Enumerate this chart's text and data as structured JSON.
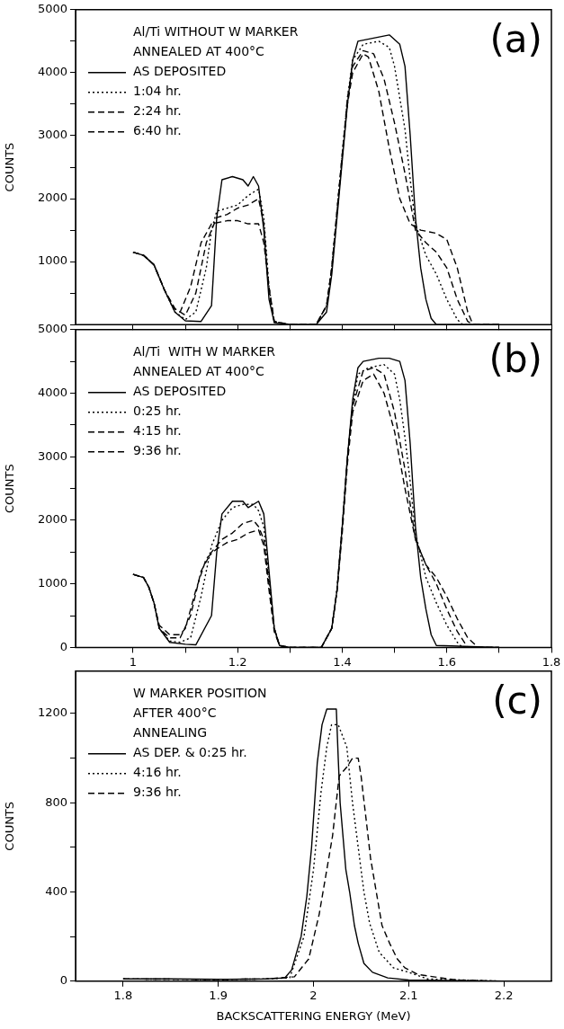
{
  "chart_data": [
    {
      "type": "line",
      "legend_title": "Al/Ti WITHOUT W MARKER\nANNEALED AT 400°C",
      "ylabel": "COUNTS",
      "annotations": [
        "(a)"
      ],
      "xlim": [
        0.89,
        1.8
      ],
      "xticks": [
        1.0,
        {
          "value": 1.1,
          "label": null
        },
        1.2,
        {
          "value": 1.3,
          "label": null
        },
        1.4,
        {
          "value": 1.5,
          "label": null
        },
        1.6,
        {
          "value": 1.7,
          "label": null
        },
        1.8
      ],
      "ylim": [
        0,
        5000
      ],
      "yticks": [
        {
          "value": 0,
          "label": null
        },
        {
          "value": 500,
          "label": null
        },
        1000,
        {
          "value": 1500,
          "label": null
        },
        2000,
        {
          "value": 2500,
          "label": null
        },
        3000,
        {
          "value": 3500,
          "label": null
        },
        4000,
        {
          "value": 4500,
          "label": null
        },
        5000
      ],
      "tick_labels": "y",
      "legend": "top left",
      "marker": "none",
      "series": [
        {
          "name": "AS DEPOSITED",
          "color": "#000000",
          "line_style": "solid",
          "x": [
            1.0,
            1.02,
            1.04,
            1.06,
            1.08,
            1.1,
            1.13,
            1.15,
            1.16,
            1.17,
            1.19,
            1.21,
            1.22,
            1.23,
            1.24,
            1.25,
            1.26,
            1.27,
            1.3,
            1.35,
            1.37,
            1.38,
            1.39,
            1.4,
            1.41,
            1.42,
            1.43,
            1.46,
            1.49,
            1.51,
            1.52,
            1.53,
            1.54,
            1.55,
            1.56,
            1.57,
            1.58,
            1.7
          ],
          "values": [
            1150,
            1100,
            950,
            550,
            200,
            60,
            50,
            300,
            1700,
            2300,
            2350,
            2300,
            2200,
            2350,
            2200,
            1500,
            400,
            30,
            0,
            0,
            200,
            800,
            1700,
            2600,
            3500,
            4200,
            4500,
            4550,
            4600,
            4450,
            4100,
            3000,
            1700,
            900,
            400,
            100,
            0,
            0
          ]
        },
        {
          "name": "1:04 hr.",
          "color": "#000000",
          "line_style": "dotted",
          "x": [
            1.0,
            1.02,
            1.04,
            1.06,
            1.08,
            1.1,
            1.12,
            1.14,
            1.15,
            1.16,
            1.18,
            1.2,
            1.22,
            1.24,
            1.25,
            1.26,
            1.27,
            1.3,
            1.35,
            1.37,
            1.38,
            1.39,
            1.4,
            1.41,
            1.42,
            1.44,
            1.47,
            1.49,
            1.5,
            1.51,
            1.52,
            1.53,
            1.54,
            1.56,
            1.58,
            1.6,
            1.62,
            1.63,
            1.7
          ],
          "values": [
            1150,
            1100,
            950,
            550,
            200,
            80,
            200,
            900,
            1500,
            1800,
            1850,
            1900,
            2050,
            2150,
            1700,
            600,
            50,
            0,
            0,
            300,
            900,
            1800,
            2700,
            3600,
            4200,
            4450,
            4500,
            4400,
            4100,
            3600,
            3100,
            2300,
            1600,
            1100,
            800,
            400,
            80,
            0,
            0
          ]
        },
        {
          "name": "2:24 hr.",
          "color": "#000000",
          "line_style": "dashed",
          "x": [
            1.0,
            1.02,
            1.04,
            1.06,
            1.08,
            1.1,
            1.12,
            1.14,
            1.16,
            1.18,
            1.2,
            1.22,
            1.24,
            1.25,
            1.26,
            1.27,
            1.3,
            1.35,
            1.37,
            1.38,
            1.39,
            1.4,
            1.41,
            1.42,
            1.44,
            1.46,
            1.48,
            1.5,
            1.52,
            1.54,
            1.56,
            1.58,
            1.6,
            1.62,
            1.64,
            1.65,
            1.7
          ],
          "values": [
            1150,
            1100,
            950,
            550,
            250,
            150,
            500,
            1300,
            1700,
            1750,
            1850,
            1900,
            2000,
            1600,
            500,
            50,
            0,
            0,
            300,
            900,
            1800,
            2700,
            3600,
            4100,
            4350,
            4300,
            3900,
            3200,
            2400,
            1500,
            1300,
            1150,
            900,
            400,
            50,
            0,
            0
          ]
        },
        {
          "name": "6:40 hr.",
          "color": "#000000",
          "line_style": "dashed",
          "x": [
            1.0,
            1.02,
            1.04,
            1.06,
            1.08,
            1.09,
            1.11,
            1.13,
            1.15,
            1.18,
            1.2,
            1.22,
            1.24,
            1.25,
            1.26,
            1.27,
            1.3,
            1.35,
            1.37,
            1.38,
            1.39,
            1.4,
            1.41,
            1.42,
            1.44,
            1.45,
            1.47,
            1.49,
            1.51,
            1.53,
            1.55,
            1.58,
            1.6,
            1.62,
            1.64,
            1.65,
            1.7
          ],
          "values": [
            1150,
            1100,
            950,
            550,
            250,
            200,
            600,
            1300,
            1600,
            1650,
            1650,
            1600,
            1600,
            1300,
            600,
            50,
            0,
            0,
            300,
            900,
            1800,
            2700,
            3500,
            4000,
            4300,
            4250,
            3700,
            2800,
            2000,
            1600,
            1500,
            1450,
            1350,
            900,
            200,
            0,
            0
          ]
        }
      ]
    },
    {
      "type": "line",
      "legend_title": "Al/Ti  WITH W MARKER\nANNEALED AT 400°C",
      "ylabel": "COUNTS",
      "annotations": [
        "(b)"
      ],
      "xlim": [
        0.89,
        1.8
      ],
      "xticks": [
        1.0,
        {
          "value": 1.1,
          "label": null
        },
        1.2,
        {
          "value": 1.3,
          "label": null
        },
        1.4,
        {
          "value": 1.5,
          "label": null
        },
        1.6,
        {
          "value": 1.7,
          "label": null
        },
        1.8
      ],
      "ylim": [
        0,
        5000
      ],
      "yticks": [
        0,
        {
          "value": 500,
          "label": null
        },
        1000,
        {
          "value": 1500,
          "label": null
        },
        2000,
        {
          "value": 2500,
          "label": null
        },
        3000,
        {
          "value": 3500,
          "label": null
        },
        4000,
        {
          "value": 4500,
          "label": null
        },
        5000
      ],
      "legend": "top left",
      "marker": "none",
      "series": [
        {
          "name": "AS DEPOSITED",
          "color": "#000000",
          "line_style": "solid",
          "x": [
            1.0,
            1.02,
            1.03,
            1.04,
            1.05,
            1.07,
            1.1,
            1.12,
            1.15,
            1.16,
            1.17,
            1.19,
            1.21,
            1.22,
            1.24,
            1.25,
            1.26,
            1.27,
            1.28,
            1.3,
            1.36,
            1.38,
            1.39,
            1.4,
            1.41,
            1.42,
            1.43,
            1.44,
            1.47,
            1.49,
            1.51,
            1.52,
            1.53,
            1.54,
            1.55,
            1.56,
            1.57,
            1.58,
            1.7
          ],
          "values": [
            1150,
            1100,
            950,
            700,
            300,
            80,
            50,
            40,
            500,
            1500,
            2100,
            2300,
            2300,
            2200,
            2300,
            2100,
            1200,
            300,
            30,
            0,
            0,
            300,
            900,
            1900,
            3000,
            3900,
            4400,
            4500,
            4550,
            4550,
            4500,
            4200,
            3200,
            1900,
            1100,
            600,
            200,
            30,
            0
          ]
        },
        {
          "name": "0:25 hr.",
          "color": "#000000",
          "line_style": "dotted",
          "x": [
            1.0,
            1.02,
            1.03,
            1.04,
            1.05,
            1.07,
            1.09,
            1.11,
            1.13,
            1.15,
            1.17,
            1.19,
            1.21,
            1.23,
            1.24,
            1.25,
            1.26,
            1.27,
            1.28,
            1.3,
            1.36,
            1.38,
            1.39,
            1.4,
            1.41,
            1.42,
            1.43,
            1.45,
            1.48,
            1.5,
            1.51,
            1.52,
            1.53,
            1.54,
            1.56,
            1.58,
            1.6,
            1.62,
            1.63,
            1.7
          ],
          "values": [
            1150,
            1100,
            950,
            700,
            300,
            100,
            80,
            150,
            800,
            1600,
            2000,
            2200,
            2250,
            2250,
            2150,
            1900,
            1100,
            300,
            30,
            0,
            0,
            300,
            900,
            1900,
            3000,
            3800,
            4300,
            4400,
            4450,
            4300,
            3900,
            3300,
            2600,
            1800,
            1100,
            700,
            350,
            80,
            0,
            0
          ]
        },
        {
          "name": "4:15 hr.",
          "color": "#000000",
          "line_style": "dashed",
          "x": [
            1.0,
            1.02,
            1.03,
            1.04,
            1.05,
            1.07,
            1.09,
            1.11,
            1.13,
            1.15,
            1.17,
            1.19,
            1.21,
            1.23,
            1.24,
            1.25,
            1.26,
            1.27,
            1.28,
            1.3,
            1.36,
            1.38,
            1.39,
            1.4,
            1.41,
            1.42,
            1.44,
            1.46,
            1.48,
            1.5,
            1.52,
            1.54,
            1.56,
            1.58,
            1.6,
            1.62,
            1.64,
            1.7
          ],
          "values": [
            1150,
            1100,
            950,
            700,
            300,
            150,
            150,
            500,
            1200,
            1500,
            1700,
            1800,
            1950,
            2000,
            1900,
            1700,
            1000,
            300,
            30,
            0,
            0,
            300,
            900,
            1900,
            3000,
            3800,
            4350,
            4400,
            4300,
            3700,
            2800,
            1700,
            1300,
            1000,
            600,
            250,
            0,
            0
          ]
        },
        {
          "name": "9:36 hr.",
          "color": "#000000",
          "line_style": "dashed",
          "x": [
            1.0,
            1.02,
            1.03,
            1.04,
            1.05,
            1.07,
            1.09,
            1.1,
            1.12,
            1.14,
            1.16,
            1.18,
            1.2,
            1.22,
            1.24,
            1.25,
            1.26,
            1.27,
            1.28,
            1.3,
            1.36,
            1.38,
            1.39,
            1.4,
            1.41,
            1.42,
            1.44,
            1.46,
            1.48,
            1.5,
            1.52,
            1.54,
            1.56,
            1.58,
            1.6,
            1.62,
            1.64,
            1.66,
            1.7
          ],
          "values": [
            1150,
            1100,
            950,
            700,
            350,
            200,
            200,
            300,
            900,
            1400,
            1550,
            1650,
            1700,
            1800,
            1850,
            1600,
            900,
            250,
            30,
            0,
            0,
            300,
            900,
            1800,
            2900,
            3700,
            4200,
            4300,
            4000,
            3400,
            2500,
            1700,
            1300,
            1100,
            800,
            450,
            150,
            0,
            0
          ]
        }
      ]
    },
    {
      "type": "line",
      "legend_title": "W MARKER POSITION\nAFTER 400°C\nANNEALING",
      "ylabel": "COUNTS",
      "xlabel": "BACKSCATTERING ENERGY (MeV)",
      "annotations": [
        "(c)"
      ],
      "xlim": [
        1.75,
        2.25
      ],
      "xticks": [
        1.8,
        1.9,
        2.0,
        2.1,
        2.2
      ],
      "ylim": [
        0,
        1390
      ],
      "yticks": [
        0,
        {
          "value": 200,
          "label": null
        },
        400,
        {
          "value": 600,
          "label": null
        },
        800,
        {
          "value": 1000,
          "label": null
        },
        1200
      ],
      "legend": "top left",
      "marker": "none",
      "series": [
        {
          "name": "AS DEP. & 0:25 hr.",
          "color": "#000000",
          "line_style": "solid",
          "x": [
            1.8,
            1.85,
            1.9,
            1.95,
            1.97,
            1.977,
            1.987,
            1.993,
            1.998,
            2.004,
            2.009,
            2.014,
            2.024,
            2.026,
            2.028,
            2.034,
            2.038,
            2.043,
            2.047,
            2.053,
            2.062,
            2.078,
            2.1,
            2.2
          ],
          "values": [
            10,
            10,
            8,
            10,
            15,
            50,
            200,
            380,
            600,
            980,
            1150,
            1220,
            1220,
            1000,
            800,
            500,
            400,
            250,
            170,
            80,
            40,
            15,
            5,
            0
          ]
        },
        {
          "name": "4:16 hr.",
          "color": "#000000",
          "line_style": "dotted",
          "x": [
            1.8,
            1.9,
            1.95,
            1.975,
            1.99,
            2.0,
            2.008,
            2.014,
            2.019,
            2.026,
            2.035,
            2.041,
            2.047,
            2.053,
            2.059,
            2.069,
            2.084,
            2.1,
            2.12,
            2.2
          ],
          "values": [
            10,
            8,
            10,
            15,
            200,
            500,
            850,
            1050,
            1150,
            1150,
            1050,
            800,
            600,
            400,
            260,
            130,
            60,
            40,
            10,
            0
          ]
        },
        {
          "name": "9:36 hr.",
          "color": "#000000",
          "line_style": "dashed",
          "x": [
            1.8,
            1.9,
            1.95,
            1.98,
            1.995,
            2.006,
            2.014,
            2.02,
            2.027,
            2.035,
            2.041,
            2.047,
            2.05,
            2.056,
            2.06,
            2.066,
            2.072,
            2.08,
            2.088,
            2.096,
            2.11,
            2.15,
            2.2
          ],
          "values": [
            10,
            8,
            10,
            20,
            100,
            300,
            500,
            650,
            920,
            960,
            1000,
            1000,
            920,
            700,
            550,
            400,
            250,
            170,
            100,
            60,
            30,
            5,
            0
          ]
        }
      ]
    }
  ]
}
